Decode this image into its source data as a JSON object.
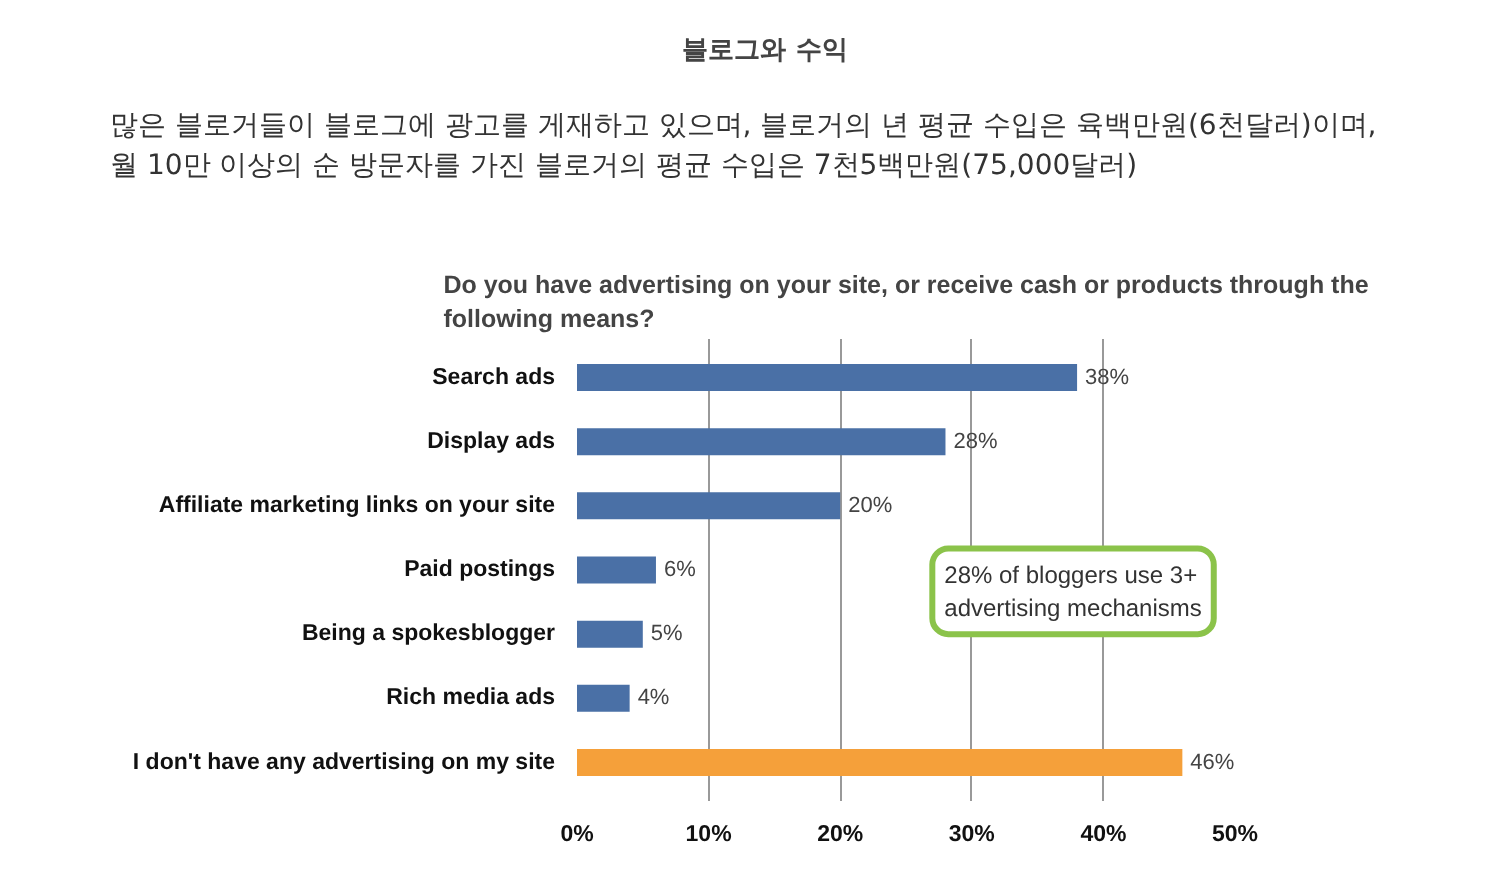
{
  "chart_data": {
    "type": "bar",
    "orientation": "horizontal",
    "title": "블로그와 수익",
    "subtitle": "많은 블로거들이 블로그에 광고를 게재하고 있으며, 블로거의 년 평균 수입은 육백만원(6천달러)이며, 월 10만 이상의 순 방문자를 가진 블로거의 평균 수입은 7천5백만원(75,000달러)",
    "categories": [
      "Search ads",
      "Display ads",
      "Affiliate marketing links on your site",
      "Paid postings",
      "Being a spokesblogger",
      "Rich media ads",
      "I don't have any advertising on my site"
    ],
    "values": [
      38,
      28,
      20,
      6,
      5,
      4,
      46
    ],
    "value_labels": [
      "38%",
      "28%",
      "20%",
      "6%",
      "5%",
      "4%",
      "46%"
    ],
    "colors": [
      "#4a70a6",
      "#4a70a6",
      "#4a70a6",
      "#4a70a6",
      "#4a70a6",
      "#4a70a6",
      "#f5a03a"
    ],
    "xlim": [
      0,
      50
    ],
    "xticks": [
      {
        "value": 0,
        "label": "0%"
      },
      {
        "value": 10,
        "label": "10%"
      },
      {
        "value": 20,
        "label": "20%"
      },
      {
        "value": 30,
        "label": "30%"
      },
      {
        "value": 40,
        "label": "40%"
      },
      {
        "value": 50,
        "label": "50%"
      }
    ],
    "grid": "x",
    "annotations": [
      "Do you have advertising on your site, or receive cash or products through the following means?",
      "28% of bloggers use 3+ advertising mechanisms"
    ]
  }
}
